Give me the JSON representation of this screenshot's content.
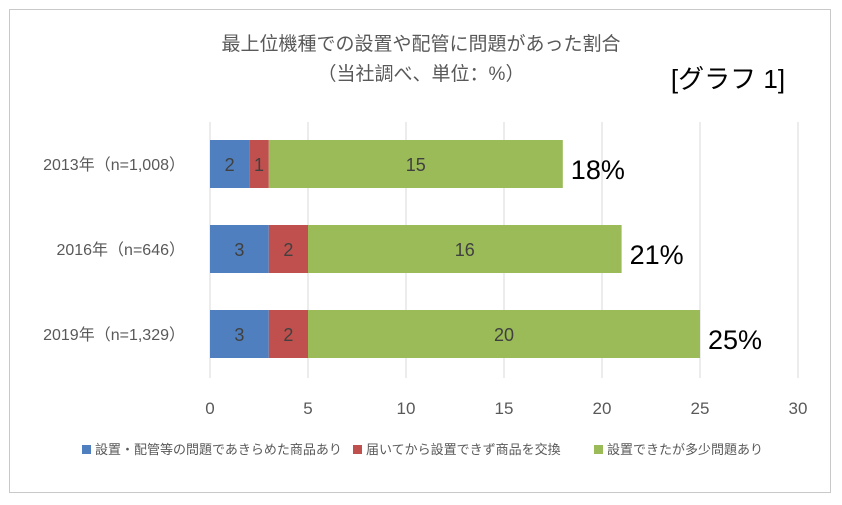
{
  "chart_data": {
    "type": "bar",
    "orientation": "horizontal",
    "stacked": true,
    "title": "最上位機種での設置や配管に問題があった割合",
    "subtitle": "（当社調べ、単位：%）",
    "tag": "[グラフ 1]",
    "categories": [
      "2013年（n=1,008）",
      "2016年（n=646）",
      "2019年（n=1,329）"
    ],
    "series": [
      {
        "name": "設置・配管等の問題であきらめた商品あり",
        "color": "#4f7fbf",
        "values": [
          2,
          3,
          3
        ]
      },
      {
        "name": "届いてから設置できず商品を交換",
        "color": "#c0504d",
        "values": [
          1,
          2,
          2
        ]
      },
      {
        "name": "設置できたが多少問題あり",
        "color": "#9bbb59",
        "values": [
          15,
          16,
          20
        ]
      }
    ],
    "totals": [
      "18%",
      "21%",
      "25%"
    ],
    "xlim": [
      0,
      30
    ],
    "xticks": [
      0,
      5,
      10,
      15,
      20,
      25,
      30
    ],
    "grid": true,
    "legend": "bottom"
  }
}
